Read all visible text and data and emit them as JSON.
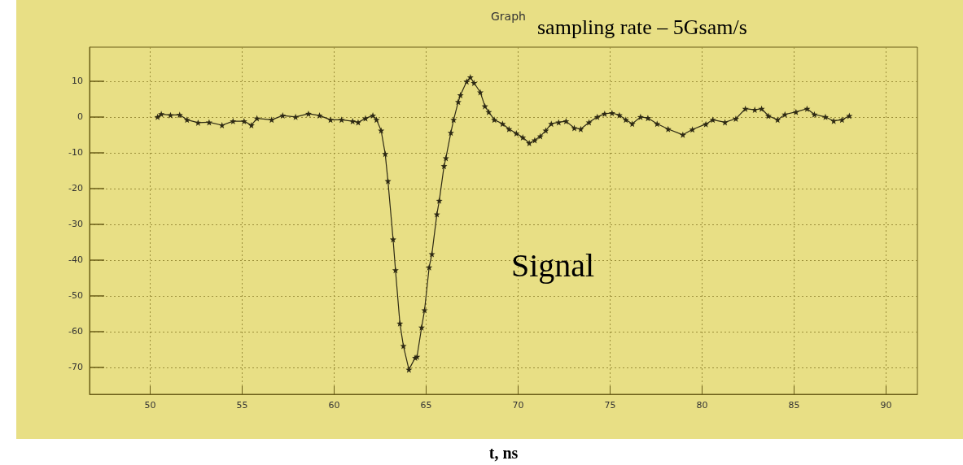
{
  "chart_data": {
    "type": "line",
    "title": "Graph",
    "xlabel": "t, ns",
    "annotations": [
      "sampling rate – 5Gsam/s",
      "Signal"
    ],
    "x": [
      50.4,
      50.6,
      51.1,
      51.6,
      52.0,
      52.6,
      53.2,
      53.9,
      54.5,
      55.1,
      55.5,
      55.8,
      56.6,
      57.2,
      57.9,
      58.6,
      59.2,
      59.8,
      60.4,
      61.0,
      61.3,
      61.7,
      62.1,
      62.3,
      62.55,
      62.77,
      62.92,
      63.2,
      63.33,
      63.57,
      63.76,
      64.06,
      64.4,
      64.5,
      64.75,
      64.91,
      65.16,
      65.31,
      65.58,
      65.71,
      65.97,
      66.07,
      66.34,
      66.49,
      66.74,
      66.86,
      67.2,
      67.4,
      67.6,
      67.94,
      68.19,
      68.4,
      68.7,
      69.15,
      69.5,
      69.9,
      70.25,
      70.6,
      70.9,
      71.2,
      71.5,
      71.8,
      72.2,
      72.6,
      73.05,
      73.4,
      73.85,
      74.3,
      74.7,
      75.1,
      75.5,
      75.85,
      76.2,
      76.65,
      77.05,
      77.55,
      78.15,
      78.95,
      79.47,
      80.2,
      80.58,
      81.24,
      81.83,
      82.35,
      82.86,
      83.23,
      83.6,
      84.1,
      84.5,
      85.1,
      85.7,
      86.1,
      86.7,
      87.15,
      87.6,
      88.0
    ],
    "values": [
      0,
      0.8,
      0.5,
      0.6,
      -0.8,
      -1.6,
      -1.5,
      -2.3,
      -1.2,
      -1.2,
      -2.3,
      -0.4,
      -0.8,
      0.4,
      0,
      0.9,
      0.4,
      -0.8,
      -0.8,
      -1.2,
      -1.5,
      -0.4,
      0.4,
      -0.8,
      -3.8,
      -10.3,
      -17.9,
      -34.2,
      -42.8,
      -57.7,
      -64,
      -70.6,
      -67.3,
      -67,
      -58.8,
      -54,
      -42,
      -38.3,
      -27.2,
      -23.4,
      -13.7,
      -11.5,
      -4.4,
      -0.8,
      4.2,
      6.1,
      9.9,
      11.1,
      9.5,
      6.9,
      3,
      1.4,
      -0.8,
      -1.9,
      -3.4,
      -4.6,
      -5.7,
      -7.3,
      -6.5,
      -5.4,
      -3.8,
      -1.9,
      -1.5,
      -1.2,
      -3.1,
      -3.4,
      -1.5,
      0,
      0.9,
      1.1,
      0.5,
      -0.8,
      -1.9,
      0,
      -0.3,
      -1.9,
      -3.4,
      -5,
      -3.5,
      -2,
      -0.8,
      -1.5,
      -0.5,
      2.3,
      2,
      2.3,
      0.3,
      -0.8,
      0.7,
      1.4,
      2.3,
      0.7,
      0,
      -1.1,
      -0.8,
      0.3
    ],
    "color": "#2e2a14",
    "marker": "star",
    "line_style": "solid",
    "grid": true,
    "xlim": [
      46.7,
      91.7
    ],
    "ylim": [
      -77.5,
      19.5
    ],
    "xticks": [
      50,
      55,
      60,
      65,
      70,
      75,
      80,
      85,
      90
    ],
    "yticks": [
      -70,
      -60,
      -50,
      -40,
      -30,
      -20,
      -10,
      0,
      10
    ]
  }
}
